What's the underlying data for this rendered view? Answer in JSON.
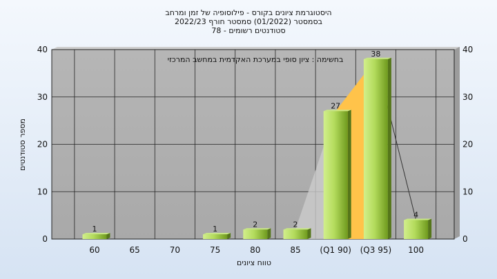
{
  "title_lines": [
    "היסטוגרמת ציונים בקורס - פילוסופיה של זמן ומרחב",
    "בסמסטר  (01/2022)  סמסטר חורף 2022/23",
    "סטודנטים רשומים - 78"
  ],
  "colors": {
    "plot_bg": "#b4b4b4",
    "bar_light": "#d2ef8c",
    "bar_dark": "#6f9a1e",
    "quartile_band": "#ffc34a",
    "grid": "#111111"
  },
  "chart_data": {
    "type": "bar",
    "categories": [
      "60",
      "65",
      "70",
      "75",
      "80",
      "85",
      "(Q1 90)",
      "(Q3 95)",
      "100"
    ],
    "values": [
      1,
      0,
      0,
      1,
      2,
      2,
      27,
      38,
      4
    ],
    "title": "היסטוגרמת ציונים בקורס - פילוסופיה של זמן ומרחב",
    "annotation": "בחשימה : ציון סופי במערכת האקדמית במחשב המרכזי",
    "xlabel": "טווח ציונים",
    "ylabel": "מספר סטודנטים",
    "ylim": [
      0,
      40
    ],
    "yticks": [
      0,
      10,
      20,
      30,
      40
    ],
    "grid": true,
    "secondary_y_axis": true
  }
}
